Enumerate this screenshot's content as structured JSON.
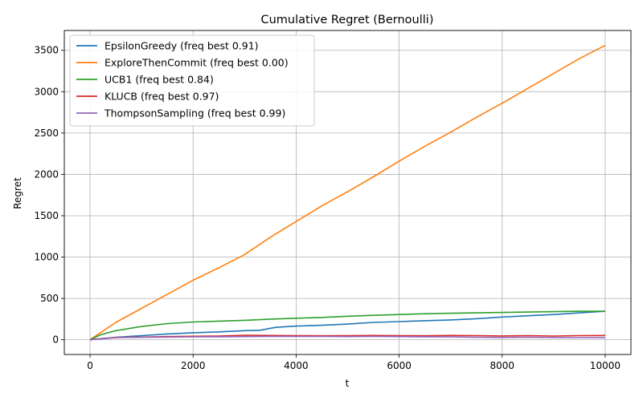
{
  "chart_data": {
    "type": "line",
    "title": "Cumulative Regret (Bernoulli)",
    "xlabel": "t",
    "ylabel": "Regret",
    "xlim": [
      -500,
      10500
    ],
    "ylim": [
      -178,
      3740
    ],
    "xticks": [
      0,
      2000,
      4000,
      6000,
      8000,
      10000
    ],
    "yticks": [
      0,
      500,
      1000,
      1500,
      2000,
      2500,
      3000,
      3500
    ],
    "grid": true,
    "legend_position": "top-left",
    "series": [
      {
        "name": "EpsilonGreedy (freq best 0.91)",
        "color": "#1f77b4",
        "x": [
          0,
          500,
          1000,
          1500,
          2000,
          2500,
          3000,
          3300,
          3600,
          4000,
          4500,
          5000,
          5500,
          6000,
          6500,
          7000,
          7500,
          8000,
          8500,
          9000,
          9500,
          10000
        ],
        "y": [
          0,
          30,
          50,
          70,
          85,
          95,
          110,
          115,
          150,
          165,
          175,
          190,
          210,
          220,
          230,
          240,
          255,
          275,
          290,
          305,
          325,
          345
        ]
      },
      {
        "name": "ExploreThenCommit (freq best 0.00)",
        "color": "#ff7f0e",
        "x": [
          0,
          500,
          1000,
          1500,
          2000,
          2500,
          3000,
          3500,
          4000,
          4500,
          5000,
          5500,
          6000,
          6500,
          7000,
          7500,
          8000,
          8500,
          9000,
          9500,
          10000
        ],
        "y": [
          0,
          210,
          380,
          550,
          720,
          870,
          1030,
          1240,
          1430,
          1620,
          1790,
          1970,
          2160,
          2340,
          2510,
          2690,
          2860,
          3040,
          3220,
          3400,
          3560
        ]
      },
      {
        "name": "UCB1 (freq best 0.84)",
        "color": "#2ca02c",
        "x": [
          0,
          200,
          500,
          1000,
          1500,
          2000,
          2500,
          3000,
          3500,
          4000,
          4500,
          5000,
          5500,
          6000,
          6500,
          7000,
          7500,
          8000,
          8500,
          9000,
          9500,
          10000
        ],
        "y": [
          0,
          60,
          110,
          160,
          195,
          215,
          225,
          235,
          250,
          260,
          270,
          285,
          295,
          305,
          315,
          320,
          325,
          330,
          335,
          340,
          345,
          345
        ]
      },
      {
        "name": "KLUCB (freq best 0.97)",
        "color": "#d62728",
        "x": [
          0,
          500,
          1000,
          1500,
          2000,
          2500,
          3000,
          3500,
          4000,
          4500,
          5000,
          5500,
          6000,
          6500,
          7000,
          7500,
          8000,
          8500,
          9000,
          9500,
          10000
        ],
        "y": [
          0,
          28,
          32,
          38,
          42,
          45,
          55,
          52,
          50,
          48,
          50,
          52,
          50,
          48,
          52,
          50,
          46,
          50,
          45,
          50,
          52
        ]
      },
      {
        "name": "ThompsonSampling (freq best 0.99)",
        "color": "#9467bd",
        "x": [
          0,
          500,
          1000,
          1500,
          2000,
          2500,
          3000,
          3500,
          4000,
          4500,
          5000,
          5500,
          6000,
          6500,
          7000,
          7500,
          8000,
          8500,
          9000,
          9500,
          10000
        ],
        "y": [
          0,
          26,
          30,
          32,
          35,
          36,
          38,
          40,
          40,
          40,
          38,
          40,
          38,
          36,
          34,
          30,
          28,
          30,
          28,
          26,
          27
        ]
      }
    ]
  }
}
